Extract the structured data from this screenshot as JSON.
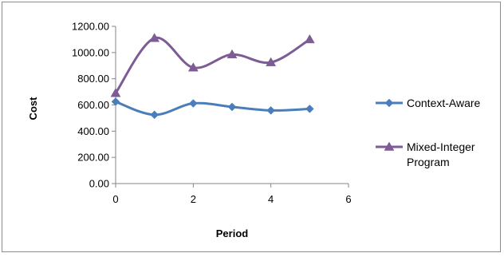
{
  "chart_data": {
    "type": "scatter",
    "title": "",
    "xlabel": "Period",
    "ylabel": "Cost",
    "xlim": [
      0,
      6
    ],
    "ylim": [
      0,
      1200
    ],
    "x_ticks": [
      0,
      2,
      4,
      6
    ],
    "y_ticks": [
      0,
      200,
      400,
      600,
      800,
      1000,
      1200
    ],
    "x_tick_labels": [
      "0",
      "2",
      "4",
      "6"
    ],
    "y_tick_labels": [
      "0.00",
      "200.00",
      "400.00",
      "600.00",
      "800.00",
      "1000.00",
      "1200.00"
    ],
    "grid": false,
    "smooth": true,
    "legend_position": "right",
    "series": [
      {
        "name": "Context-Aware",
        "legend_lines": [
          "Context-Aware"
        ],
        "marker": "diamond",
        "color": "#4a7ebb",
        "x": [
          0,
          1,
          2,
          3,
          4,
          5
        ],
        "y": [
          625,
          525,
          612,
          585,
          558,
          570
        ]
      },
      {
        "name": "Mixed-Integer Program",
        "legend_lines": [
          "Mixed-Integer",
          "Program"
        ],
        "marker": "triangle",
        "color": "#7d5b95",
        "x": [
          0,
          1,
          2,
          3,
          4,
          5
        ],
        "y": [
          690,
          1110,
          885,
          985,
          925,
          1100
        ]
      }
    ]
  }
}
